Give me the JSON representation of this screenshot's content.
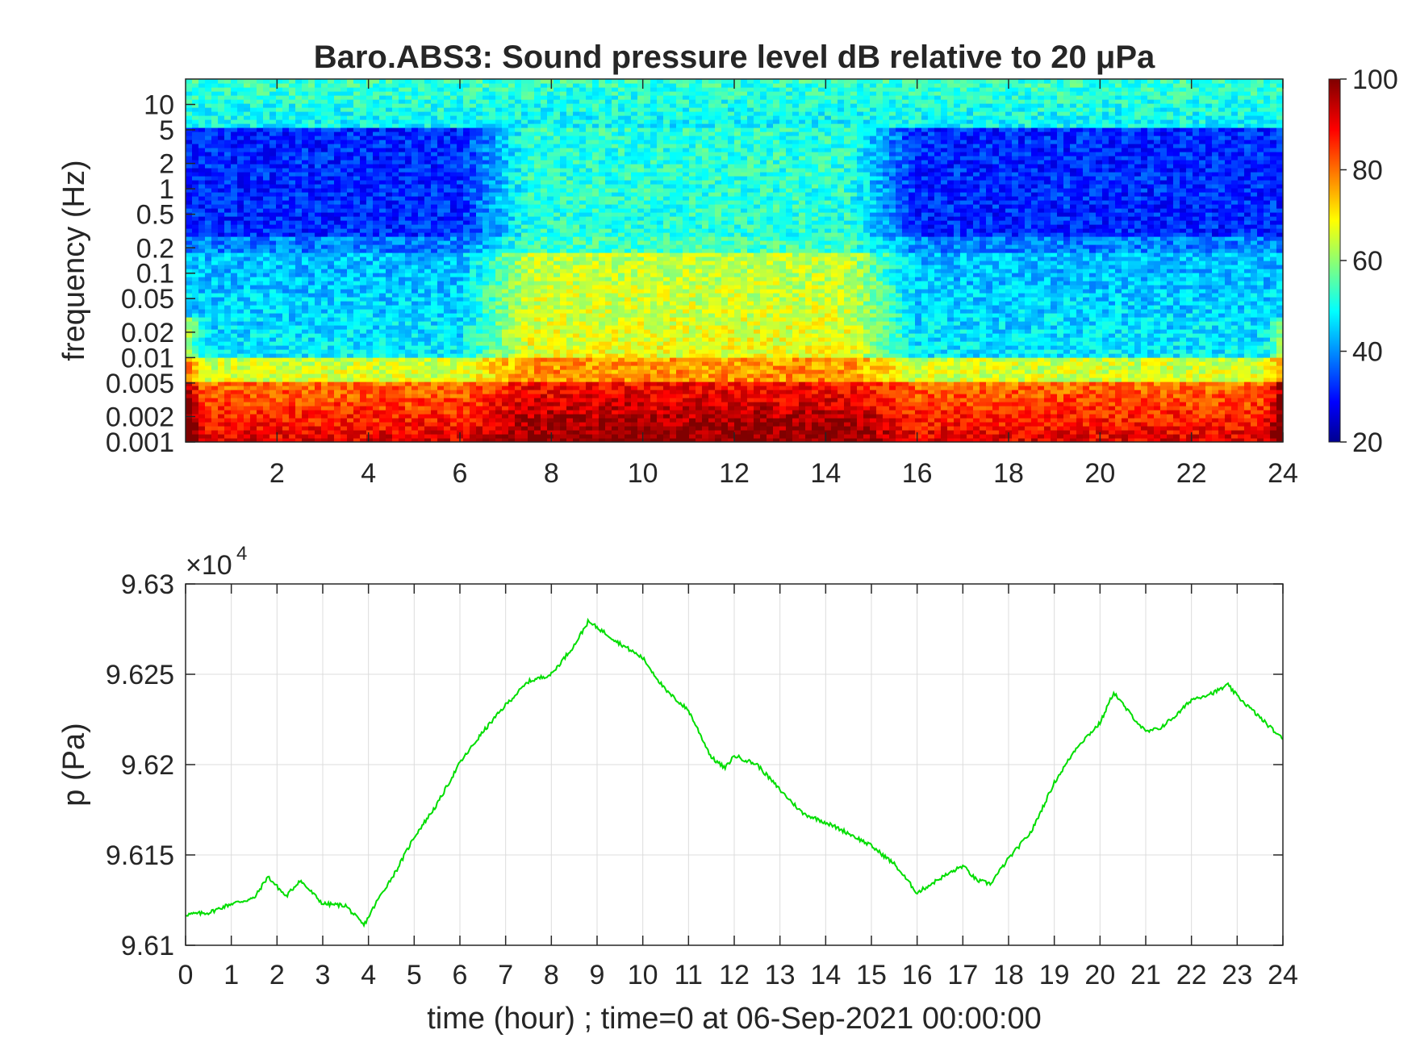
{
  "figure": {
    "background": "#ffffff",
    "axis_color": "#262626",
    "grid_color": "#dcdcdc"
  },
  "chart_data": [
    {
      "type": "heatmap",
      "title": "Baro.ABS3: Sound pressure level dB relative to 20 μPa",
      "ylabel": "frequency (Hz)",
      "xlabel": "",
      "xlim": [
        0,
        24
      ],
      "x_ticks": [
        2,
        4,
        6,
        8,
        10,
        12,
        14,
        16,
        18,
        20,
        22,
        24
      ],
      "y_scale": "log",
      "ylim": [
        0.001,
        20
      ],
      "y_ticks": [
        0.001,
        0.002,
        0.005,
        0.01,
        0.02,
        0.05,
        0.1,
        0.2,
        0.5,
        1,
        2,
        5,
        10
      ],
      "y_tick_labels": [
        "0.001",
        "0.002",
        "0.005",
        "0.01",
        "0.02",
        "0.05",
        "0.1",
        "0.2",
        "0.5",
        "1",
        "2",
        "5",
        "10"
      ],
      "colormap": "jet",
      "colorbar": {
        "min": 20,
        "max": 100,
        "ticks": [
          20,
          40,
          60,
          80,
          100
        ]
      },
      "description_bands": [
        {
          "freq_range_hz": [
            5,
            20
          ],
          "level_db": 50
        },
        {
          "freq_range_hz": [
            0.3,
            2
          ],
          "level_db": 33
        },
        {
          "freq_range_hz": [
            0.01,
            0.2
          ],
          "level_db": 45
        },
        {
          "freq_range_hz": [
            0.001,
            0.005
          ],
          "level_db": 80
        }
      ],
      "active_period_hours": [
        7,
        15
      ]
    },
    {
      "type": "line",
      "title": "",
      "xlabel": "time (hour) ; time=0 at 06-Sep-2021 00:00:00",
      "ylabel": "p (Pa)",
      "y_exponent_label": "×10",
      "y_exponent": "4",
      "xlim": [
        0,
        24
      ],
      "ylim": [
        96100,
        96300
      ],
      "x_ticks": [
        0,
        1,
        2,
        3,
        4,
        5,
        6,
        7,
        8,
        9,
        10,
        11,
        12,
        13,
        14,
        15,
        16,
        17,
        18,
        19,
        20,
        21,
        22,
        23,
        24
      ],
      "y_ticks": [
        96100,
        96150,
        96200,
        96250,
        96300
      ],
      "y_tick_labels": [
        "9.61",
        "9.615",
        "9.62",
        "9.625",
        "9.63"
      ],
      "grid": true,
      "color": "#00dd00",
      "series": [
        {
          "x": [
            0,
            0.5,
            1,
            1.5,
            1.8,
            2.2,
            2.5,
            3.0,
            3.5,
            3.9,
            4.2,
            4.6,
            5.0,
            5.5,
            6.0,
            6.5,
            7.0,
            7.5,
            8.0,
            8.5,
            8.8,
            9.0,
            9.5,
            10.0,
            10.5,
            11.0,
            11.5,
            11.8,
            12.0,
            12.5,
            13.0,
            13.5,
            14.0,
            14.5,
            15.0,
            15.5,
            16.0,
            16.5,
            17.0,
            17.3,
            17.6,
            18.0,
            18.5,
            19.0,
            19.5,
            20.0,
            20.3,
            20.6,
            21.0,
            21.3,
            21.7,
            22.0,
            22.5,
            22.8,
            23.0,
            23.5,
            24.0
          ],
          "y": [
            96117,
            96118,
            96123,
            96126,
            96138,
            96127,
            96136,
            96123,
            96122,
            96111,
            96125,
            96141,
            96160,
            96178,
            96201,
            96218,
            96233,
            96246,
            96250,
            96266,
            96279,
            96276,
            96267,
            96259,
            96241,
            96230,
            96204,
            96198,
            96205,
            96200,
            96186,
            96173,
            96168,
            96162,
            96155,
            96145,
            96129,
            96137,
            96144,
            96136,
            96134,
            96148,
            96163,
            96190,
            96210,
            96223,
            96240,
            96230,
            96218,
            96220,
            96228,
            96236,
            96240,
            96244,
            96238,
            96226,
            96214
          ]
        }
      ]
    }
  ]
}
